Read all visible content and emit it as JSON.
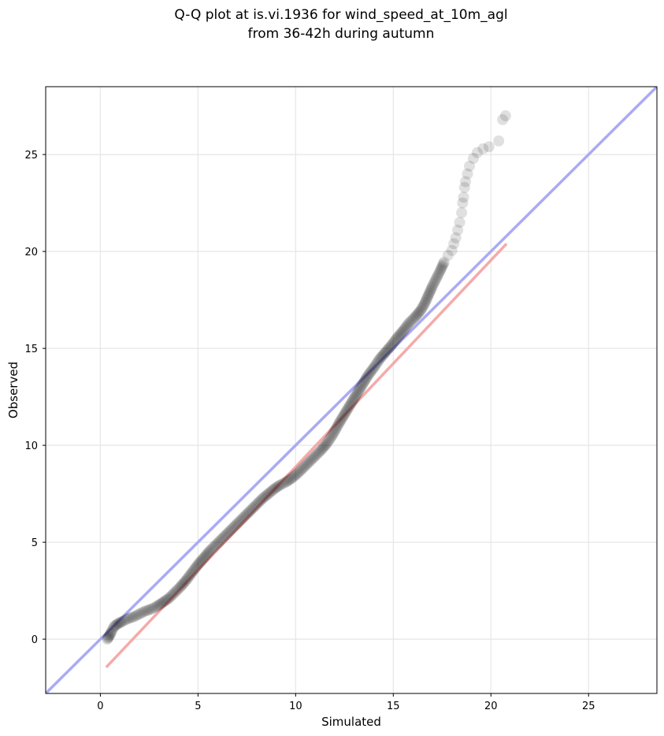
{
  "chart_data": {
    "type": "scatter",
    "title": "Q-Q plot at is.vi.1936 for wind_speed_at_10m_agl",
    "subtitle": "from 36-42h during autumn",
    "xlabel": "Simulated",
    "ylabel": "Observed",
    "xlim": [
      -2.8,
      28.5
    ],
    "ylim": [
      -2.8,
      28.5
    ],
    "xticks": [
      0,
      5,
      10,
      15,
      20,
      25
    ],
    "yticks": [
      0,
      5,
      10,
      15,
      20,
      25
    ],
    "grid": true,
    "colors": {
      "points": "#000000",
      "identity_line": "#aaaaf5",
      "fit_line": "#f5aaaa"
    },
    "identity_line": {
      "x": [
        -2.8,
        28.5
      ],
      "y": [
        -2.8,
        28.5
      ]
    },
    "fit_line": {
      "x": [
        0.3,
        20.8
      ],
      "y": [
        -1.45,
        20.4
      ]
    },
    "points": {
      "x": [
        0.35,
        0.45,
        0.55,
        0.7,
        0.9,
        1.1,
        1.4,
        1.7,
        2.0,
        2.3,
        2.6,
        2.9,
        3.2,
        3.5,
        3.8,
        4.1,
        4.4,
        4.7,
        5.0,
        5.3,
        5.6,
        5.9,
        6.2,
        6.5,
        6.8,
        7.1,
        7.4,
        7.7,
        8.0,
        8.3,
        8.6,
        8.9,
        9.2,
        9.5,
        9.8,
        10.1,
        10.4,
        10.7,
        11.0,
        11.3,
        11.6,
        11.9,
        12.2,
        12.5,
        12.8,
        13.1,
        13.4,
        13.7,
        14.0,
        14.3,
        14.6,
        14.9,
        15.2,
        15.5,
        15.8,
        16.1,
        16.4,
        16.6,
        16.8,
        17.0,
        17.2,
        17.4,
        17.6,
        17.8,
        18.0,
        18.1,
        18.2,
        18.3,
        18.4,
        18.5,
        18.55,
        18.6,
        18.65,
        18.7,
        18.8,
        18.9,
        19.1,
        19.3,
        19.6,
        19.9,
        20.4,
        20.6,
        20.75
      ],
      "y": [
        0.0,
        0.15,
        0.35,
        0.65,
        0.8,
        0.9,
        1.05,
        1.15,
        1.3,
        1.45,
        1.55,
        1.7,
        1.9,
        2.1,
        2.4,
        2.7,
        3.05,
        3.45,
        3.85,
        4.2,
        4.55,
        4.85,
        5.15,
        5.45,
        5.75,
        6.05,
        6.35,
        6.65,
        6.95,
        7.25,
        7.5,
        7.75,
        7.95,
        8.1,
        8.3,
        8.55,
        8.85,
        9.15,
        9.45,
        9.75,
        10.1,
        10.55,
        11.1,
        11.6,
        12.1,
        12.6,
        13.1,
        13.6,
        14.0,
        14.45,
        14.8,
        15.15,
        15.55,
        15.9,
        16.3,
        16.6,
        16.95,
        17.3,
        17.75,
        18.2,
        18.6,
        19.0,
        19.45,
        19.8,
        20.05,
        20.4,
        20.7,
        21.1,
        21.5,
        22.0,
        22.5,
        22.8,
        23.3,
        23.6,
        24.0,
        24.4,
        24.8,
        25.1,
        25.3,
        25.4,
        25.7,
        26.8,
        27.0
      ]
    }
  }
}
